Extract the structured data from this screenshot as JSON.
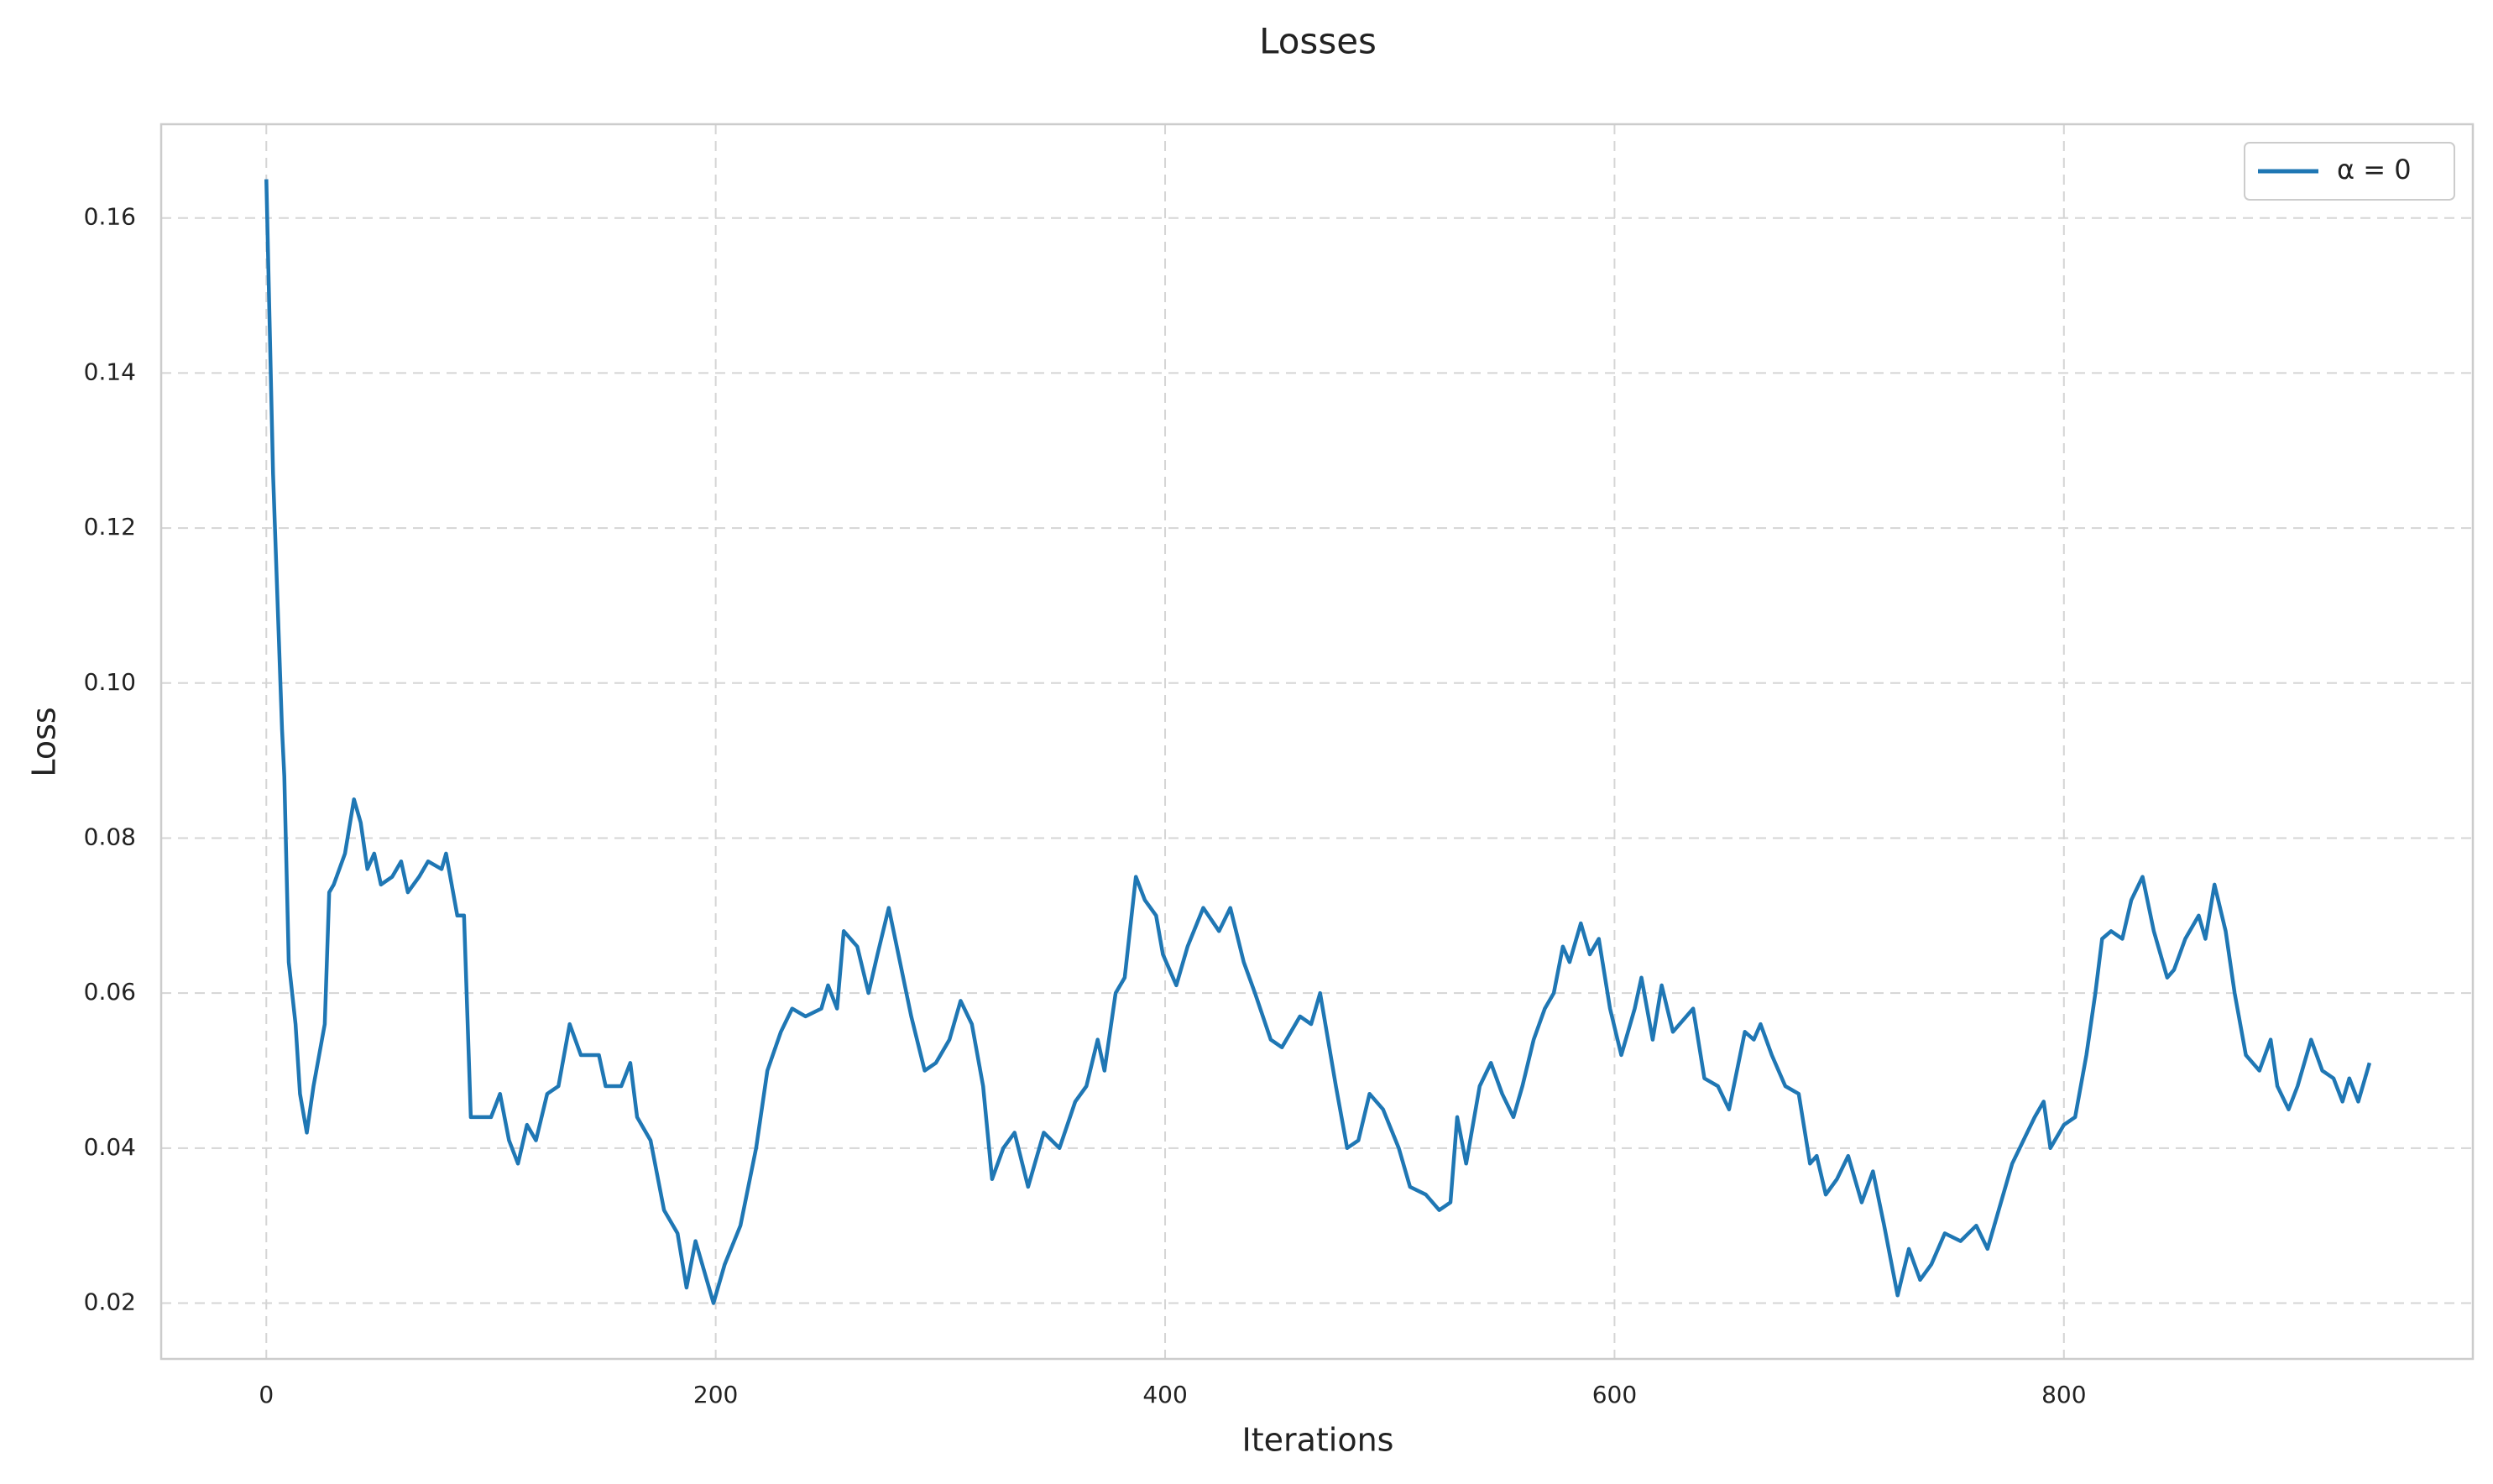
{
  "chart_data": {
    "type": "line",
    "title": "Losses",
    "x_label": "Iterations",
    "y_label": "Loss",
    "x": [
      0,
      3,
      7,
      8,
      10,
      13,
      15,
      18,
      21,
      26,
      28,
      30,
      35,
      39,
      42,
      45,
      48,
      51,
      56,
      60,
      63,
      68,
      72,
      78,
      80,
      85,
      88,
      91,
      100,
      104,
      108,
      112,
      116,
      120,
      125,
      130,
      135,
      140,
      148,
      151,
      158,
      162,
      165,
      171,
      177,
      183,
      187,
      191,
      199,
      204,
      211,
      218,
      223,
      229,
      234,
      240,
      247,
      250,
      254,
      257,
      263,
      268,
      272,
      277,
      282,
      287,
      293,
      298,
      304,
      309,
      314,
      319,
      323,
      328,
      333,
      339,
      346,
      353,
      360,
      365,
      370,
      373,
      378,
      382,
      387,
      391,
      396,
      399,
      405,
      410,
      417,
      424,
      429,
      435,
      440,
      447,
      452,
      460,
      465,
      469,
      476,
      481,
      486,
      491,
      497,
      504,
      509,
      516,
      522,
      527,
      530,
      534,
      540,
      545,
      550,
      555,
      559,
      564,
      569,
      573,
      577,
      580,
      585,
      589,
      593,
      598,
      603,
      609,
      612,
      617,
      621,
      626,
      635,
      640,
      646,
      651,
      658,
      662,
      665,
      670,
      676,
      682,
      687,
      690,
      694,
      699,
      704,
      710,
      715,
      720,
      726,
      731,
      736,
      741,
      747,
      754,
      761,
      766,
      772,
      777,
      782,
      787,
      791,
      794,
      800,
      805,
      810,
      814,
      817,
      821,
      826,
      830,
      835,
      840,
      846,
      849,
      854,
      860,
      863,
      867,
      872,
      876,
      881,
      887,
      892,
      895,
      900,
      904,
      910,
      915,
      920,
      924,
      927,
      931,
      936
    ],
    "series": [
      {
        "name": "α = 0",
        "color": "#1f77b4",
        "values": [
          0.165,
          0.127,
          0.094,
          0.088,
          0.064,
          0.056,
          0.047,
          0.042,
          0.048,
          0.056,
          0.073,
          0.074,
          0.078,
          0.085,
          0.082,
          0.076,
          0.078,
          0.074,
          0.075,
          0.077,
          0.073,
          0.075,
          0.077,
          0.076,
          0.078,
          0.07,
          0.07,
          0.044,
          0.044,
          0.047,
          0.041,
          0.038,
          0.043,
          0.041,
          0.047,
          0.048,
          0.056,
          0.052,
          0.052,
          0.048,
          0.048,
          0.051,
          0.044,
          0.041,
          0.032,
          0.029,
          0.022,
          0.028,
          0.02,
          0.025,
          0.03,
          0.04,
          0.05,
          0.055,
          0.058,
          0.057,
          0.058,
          0.061,
          0.058,
          0.068,
          0.066,
          0.06,
          0.065,
          0.071,
          0.064,
          0.057,
          0.05,
          0.051,
          0.054,
          0.059,
          0.056,
          0.048,
          0.036,
          0.04,
          0.042,
          0.035,
          0.042,
          0.04,
          0.046,
          0.048,
          0.054,
          0.05,
          0.06,
          0.062,
          0.075,
          0.072,
          0.07,
          0.065,
          0.061,
          0.066,
          0.071,
          0.068,
          0.071,
          0.064,
          0.06,
          0.054,
          0.053,
          0.057,
          0.056,
          0.06,
          0.048,
          0.04,
          0.041,
          0.047,
          0.045,
          0.04,
          0.035,
          0.034,
          0.032,
          0.033,
          0.044,
          0.038,
          0.048,
          0.051,
          0.047,
          0.044,
          0.048,
          0.054,
          0.058,
          0.06,
          0.066,
          0.064,
          0.069,
          0.065,
          0.067,
          0.058,
          0.052,
          0.058,
          0.062,
          0.054,
          0.061,
          0.055,
          0.058,
          0.049,
          0.048,
          0.045,
          0.055,
          0.054,
          0.056,
          0.052,
          0.048,
          0.047,
          0.038,
          0.039,
          0.034,
          0.036,
          0.039,
          0.033,
          0.037,
          0.03,
          0.021,
          0.027,
          0.023,
          0.025,
          0.029,
          0.028,
          0.03,
          0.027,
          0.033,
          0.038,
          0.041,
          0.044,
          0.046,
          0.04,
          0.043,
          0.044,
          0.052,
          0.06,
          0.067,
          0.068,
          0.067,
          0.072,
          0.075,
          0.068,
          0.062,
          0.063,
          0.067,
          0.07,
          0.067,
          0.074,
          0.068,
          0.06,
          0.052,
          0.05,
          0.054,
          0.048,
          0.045,
          0.048,
          0.054,
          0.05,
          0.049,
          0.046,
          0.049,
          0.046,
          0.051
        ]
      }
    ],
    "xlim": [
      -46.8,
      982
    ],
    "ylim": [
      0.0128,
      0.1721
    ],
    "xticks": [
      0,
      200,
      400,
      600,
      800
    ],
    "yticks": [
      0.02,
      0.04,
      0.06,
      0.08,
      {
        "value": 0.1,
        "label": "0.10"
      },
      0.12,
      0.14,
      0.16
    ],
    "grid": true,
    "legend": "upper right"
  }
}
